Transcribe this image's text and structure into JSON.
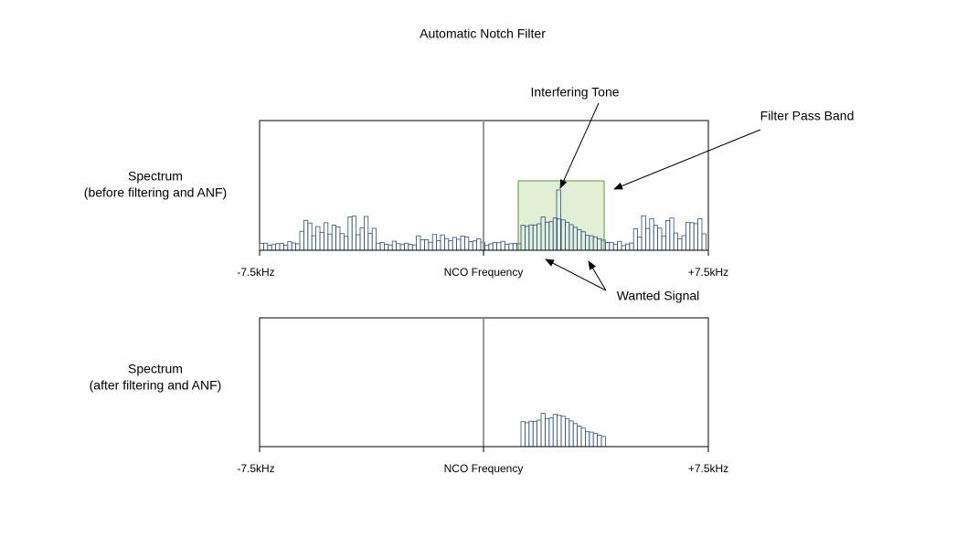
{
  "title": "Automatic Notch Filter",
  "panels": [
    {
      "label": [
        "Spectrum",
        "(before filtering and ANF)"
      ],
      "axis": {
        "left": "-7.5kHz",
        "center": "NCO Frequency",
        "right": "+7.5kHz"
      }
    },
    {
      "label": [
        "Spectrum",
        "(after filtering and ANF)"
      ],
      "axis": {
        "left": "-7.5kHz",
        "center": "NCO Frequency",
        "right": "+7.5kHz"
      }
    }
  ],
  "annotations": {
    "interfering_tone": "Interfering Tone",
    "filter_pass_band": "Filter Pass Band",
    "wanted_signal": "Wanted Signal"
  }
}
